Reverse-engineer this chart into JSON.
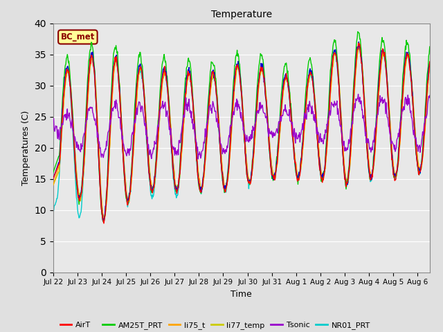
{
  "title": "Temperature",
  "xlabel": "Time",
  "ylabel": "Temperatures (C)",
  "ylim": [
    0,
    40
  ],
  "yticks": [
    0,
    5,
    10,
    15,
    20,
    25,
    30,
    35,
    40
  ],
  "annotation_text": "BC_met",
  "annotation_color": "#8B0000",
  "annotation_bg": "#FFFF99",
  "series_colors": {
    "AirT": "#FF0000",
    "li75_t_blue": "#0000CC",
    "AM25T_PRT": "#00CC00",
    "li75_t_orange": "#FFA500",
    "li77_temp": "#CCCC00",
    "Tsonic": "#9900CC",
    "NR01_PRT": "#00CCCC"
  },
  "bg_color": "#E8E8E8",
  "grid_color": "#FFFFFF",
  "num_days": 15.5,
  "xtick_labels": [
    "Jul 22",
    "Jul 23",
    "Jul 24",
    "Jul 25",
    "Jul 26",
    "Jul 27",
    "Jul 28",
    "Jul 29",
    "Jul 30",
    "Jul 31",
    "Aug 1",
    "Aug 2",
    "Aug 3",
    "Aug 4",
    "Aug 5",
    "Aug 6"
  ],
  "figsize": [
    6.4,
    4.8
  ],
  "dpi": 100
}
